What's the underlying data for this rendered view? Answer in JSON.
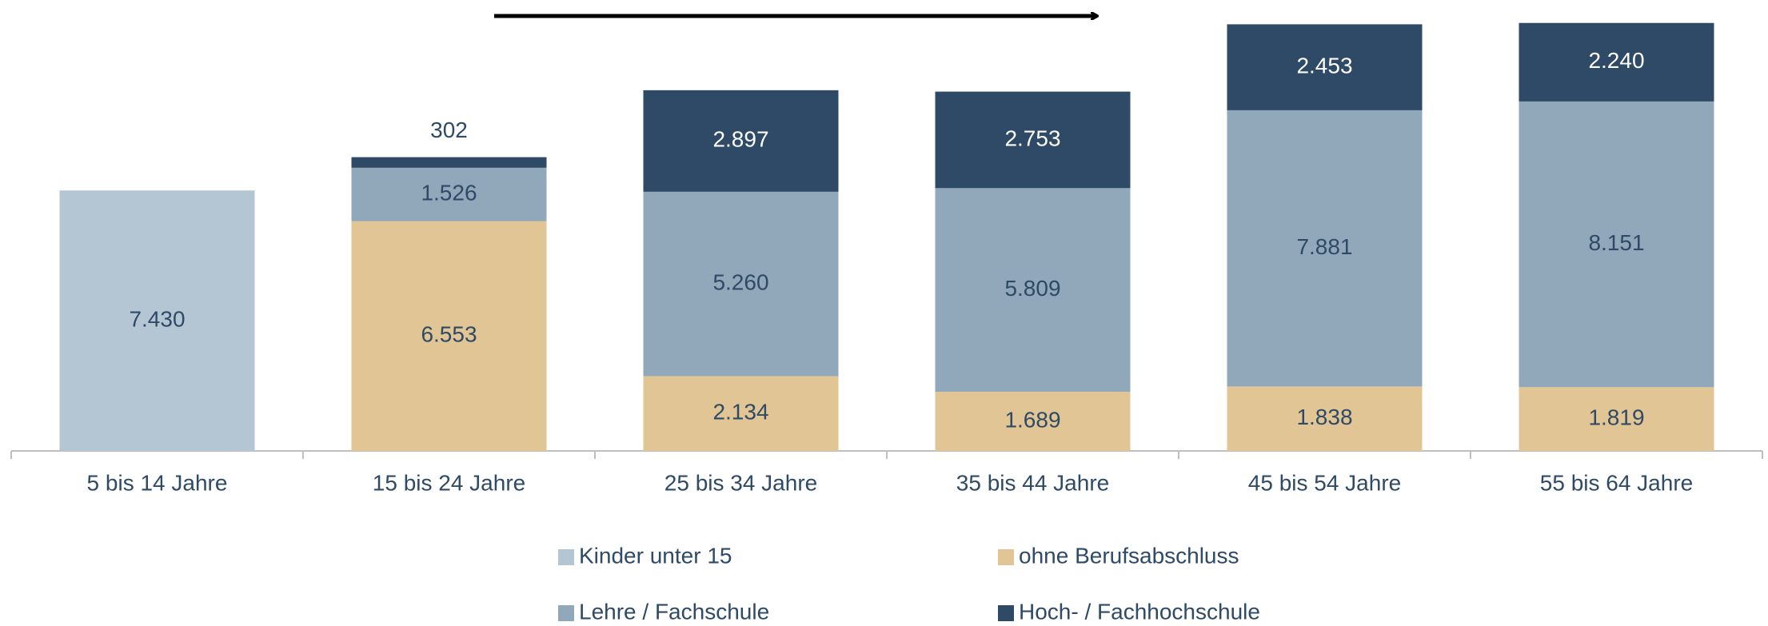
{
  "chart_data": {
    "type": "stacked_bar",
    "categories": [
      "5 bis 14 Jahre",
      "15 bis 24 Jahre",
      "25 bis 34 Jahre",
      "35 bis 44 Jahre",
      "45 bis 54 Jahre",
      "55 bis 64 Jahre"
    ],
    "series": [
      {
        "name": "Kinder unter 15",
        "color": "#b4c5d4",
        "values": [
          7430,
          null,
          null,
          null,
          null,
          null
        ],
        "value_labels": [
          "7.430",
          null,
          null,
          null,
          null,
          null
        ]
      },
      {
        "name": "ohne Berufsabschluss",
        "color": "#e1c595",
        "values": [
          null,
          6553,
          2134,
          1689,
          1838,
          1819
        ],
        "value_labels": [
          null,
          "6.553",
          "2.134",
          "1.689",
          "1.838",
          "1.819"
        ]
      },
      {
        "name": "Lehre / Fachschule",
        "color": "#91a7ba",
        "values": [
          null,
          1526,
          5260,
          5809,
          7881,
          8151
        ],
        "value_labels": [
          null,
          "1.526",
          "5.260",
          "5.809",
          "7.881",
          "8.151"
        ]
      },
      {
        "name": "Hoch- / Fachhochschule",
        "color": "#2e4a66",
        "values": [
          null,
          302,
          2897,
          2753,
          2453,
          2240
        ],
        "value_labels": [
          null,
          "302",
          "2.897",
          "2.753",
          "2.453",
          "2.240"
        ]
      }
    ],
    "ylim": [
      0,
      12500
    ],
    "legend": "bottom"
  }
}
